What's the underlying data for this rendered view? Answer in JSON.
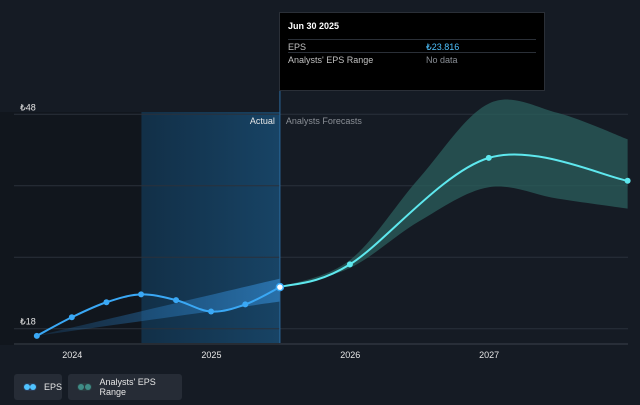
{
  "chart_data": {
    "type": "line",
    "currency": "₺",
    "y_ticks": [
      {
        "label": "₺48",
        "value": 48
      },
      {
        "label": "₺18",
        "value": 18
      }
    ],
    "ylim": [
      16,
      50
    ],
    "x_ticks": [
      {
        "label": "2024",
        "date": "2024-01-01"
      },
      {
        "label": "2025",
        "date": "2025-01-01"
      },
      {
        "label": "2026",
        "date": "2026-01-01"
      },
      {
        "label": "2027",
        "date": "2027-01-01"
      }
    ],
    "xlim": [
      "2023-08-01",
      "2028-01-01"
    ],
    "divider_date": "2025-06-30",
    "highlight_start": "2024-07-01",
    "section_labels": {
      "actual": "Actual",
      "forecast": "Analysts Forecasts"
    },
    "series": [
      {
        "name": "EPS",
        "color": "#4fc3ff",
        "points": [
          {
            "date": "2023-09-30",
            "value": 17.0
          },
          {
            "date": "2023-12-31",
            "value": 19.6
          },
          {
            "date": "2024-03-31",
            "value": 21.7
          },
          {
            "date": "2024-06-30",
            "value": 22.8
          },
          {
            "date": "2024-09-30",
            "value": 22.0
          },
          {
            "date": "2024-12-31",
            "value": 20.4
          },
          {
            "date": "2025-03-31",
            "value": 21.4
          },
          {
            "date": "2025-06-30",
            "value": 23.816
          }
        ]
      },
      {
        "name": "EPS forecast",
        "color": "#5ee8ee",
        "points": [
          {
            "date": "2025-06-30",
            "value": 23.816
          },
          {
            "date": "2025-12-31",
            "value": 27.0
          },
          {
            "date": "2026-12-31",
            "value": 41.9
          },
          {
            "date": "2027-12-31",
            "value": 38.7
          }
        ]
      }
    ],
    "past_range": {
      "name": "Analysts' EPS Range",
      "dates": [
        "2023-09-30",
        "2025-06-30"
      ],
      "upper": [
        17.0,
        25.0
      ],
      "lower": [
        17.0,
        21.8
      ]
    },
    "forecast_range": {
      "name": "Analysts' EPS Range",
      "dates": [
        "2025-06-30",
        "2025-12-31",
        "2026-06-30",
        "2026-12-31",
        "2027-06-30",
        "2027-12-31"
      ],
      "upper": [
        23.816,
        27.6,
        39.0,
        49.5,
        48.2,
        44.5
      ],
      "lower": [
        23.816,
        26.5,
        33.0,
        37.8,
        36.2,
        34.8
      ]
    }
  },
  "tooltip": {
    "date": "Jun 30 2025",
    "rows": [
      {
        "label": "EPS",
        "value": "₺23.816",
        "color": "#4fc3ff"
      },
      {
        "label": "Analysts' EPS Range",
        "value": "No data",
        "color": "#8a8f96"
      }
    ]
  },
  "legend": {
    "items": [
      {
        "label": "EPS"
      },
      {
        "label": "Analysts' EPS Range"
      }
    ]
  }
}
